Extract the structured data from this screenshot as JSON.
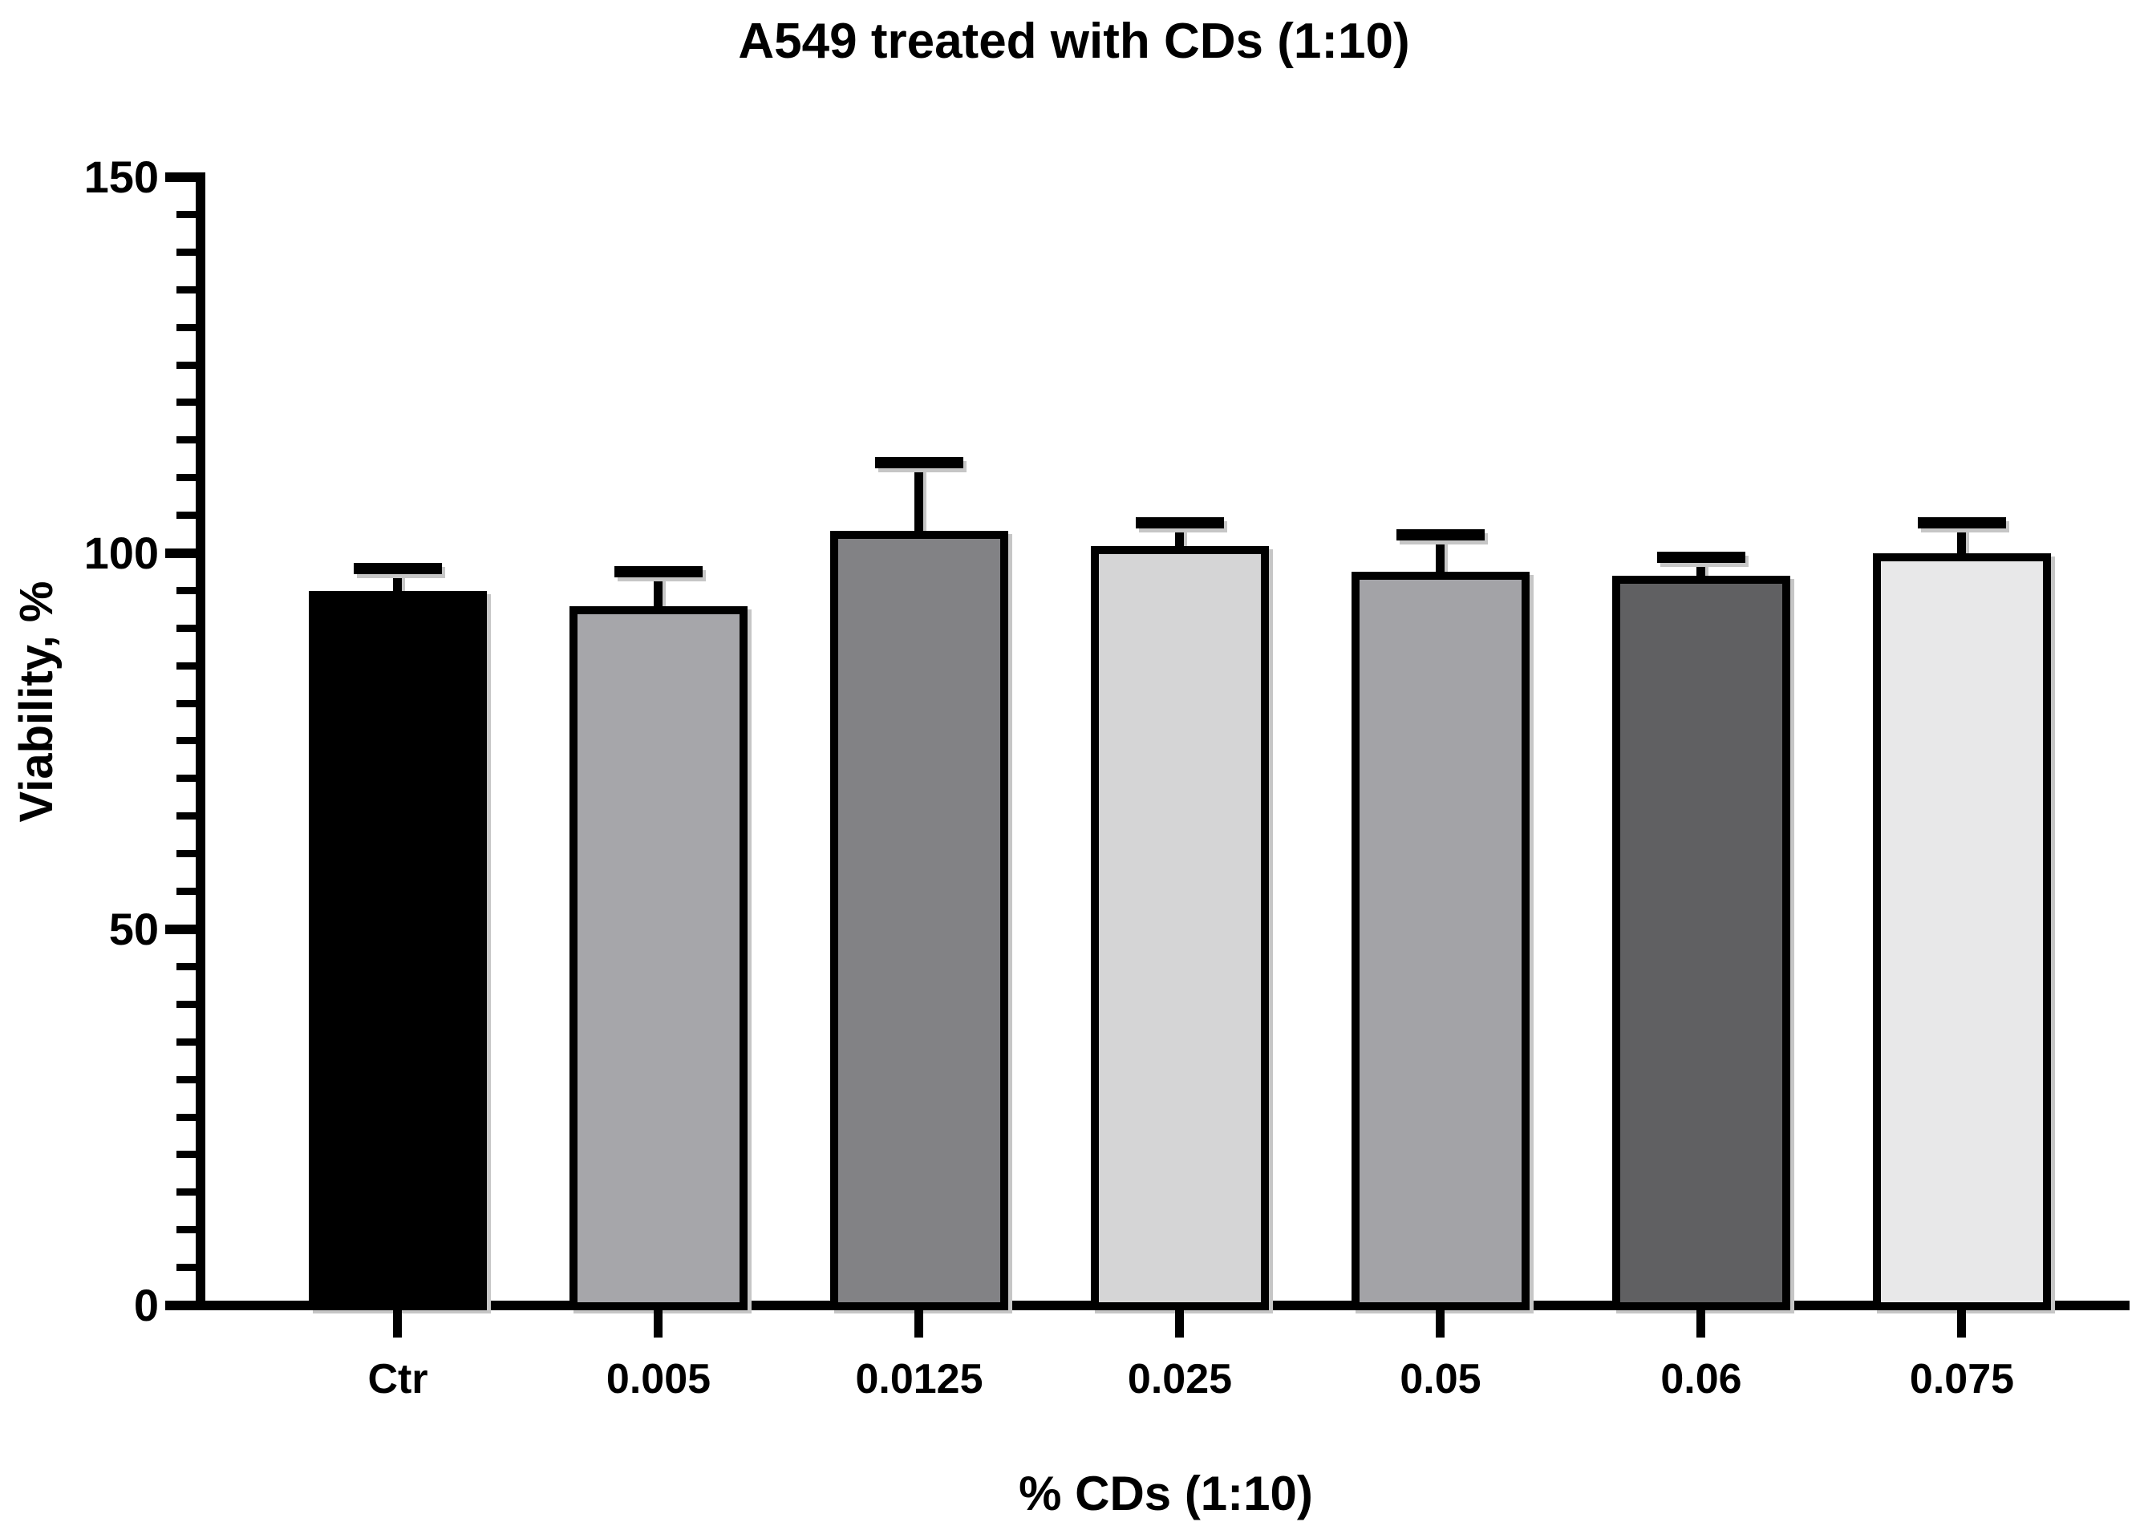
{
  "chart_data": {
    "type": "bar",
    "title": "A549 treated with CDs (1:10)",
    "xlabel": "% CDs (1:10)",
    "ylabel": "Viability, %",
    "ylim": [
      0,
      150
    ],
    "ytick_major": [
      0,
      50,
      100,
      150
    ],
    "ytick_major_labels": [
      "0",
      "50",
      "100",
      "150"
    ],
    "ytick_minor_step": 5,
    "grid": false,
    "legend": "none",
    "error_bars": "upper only, SD caps",
    "categories": [
      "Ctr",
      "0.005",
      "0.0125",
      "0.025",
      "0.05",
      "0.06",
      "0.075"
    ],
    "values": [
      95,
      93,
      103,
      101,
      97.5,
      97,
      100
    ],
    "error_upper": [
      3,
      4.6,
      9,
      3,
      5,
      2.5,
      4
    ],
    "bar_fill_colors": [
      "#000000",
      "#a6a6aa",
      "#828285",
      "#d5d5d6",
      "#a3a3a7",
      "#606062",
      "#e8e8e9"
    ],
    "bar_border_color": "#000000",
    "axis_color": "#000000",
    "shadow_color": "#c6c6c6",
    "background_color": "#ffffff"
  }
}
